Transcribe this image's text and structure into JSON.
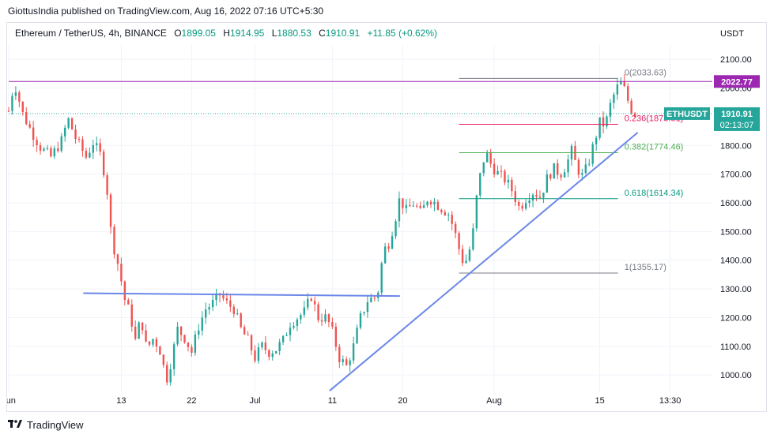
{
  "publisher_line": "GiottusIndia published on TradingView.com, Aug 16, 2022 07:16 UTC+5:30",
  "symbol_header": {
    "name": "Ethereum / TetherUS, 4h, BINANCE",
    "o_label": "O",
    "o_value": "1899.05",
    "h_label": "H",
    "h_value": "1914.95",
    "l_label": "L",
    "l_value": "1880.53",
    "c_label": "C",
    "c_value": "1910.91",
    "change": "+11.85 (+0.62%)"
  },
  "currency": "USDT",
  "footer_brand": "TradingView",
  "colors": {
    "up": "#26a69a",
    "down": "#ef5350",
    "trend": "#6b87e8",
    "resistance": "#9c27b0",
    "fib_top": "#787b86",
    "fib_236": "#e91e63",
    "fib_382": "#4caf50",
    "fib_618": "#089981",
    "fib_1": "#787b86"
  },
  "chart_data": {
    "type": "candlestick",
    "title": "Ethereum / TetherUS, 4h, BINANCE",
    "ylabel": "USDT",
    "ylim": [
      940,
      2150
    ],
    "y_ticks": [
      "1000.00",
      "1100.00",
      "1200.00",
      "1300.00",
      "1400.00",
      "1500.00",
      "1600.00",
      "1700.00",
      "1800.00",
      "1900.00",
      "2000.00",
      "2100.00"
    ],
    "x_ticks": [
      "Jun",
      "13",
      "22",
      "Jul",
      "11",
      "20",
      "Aug",
      "15",
      "13:30"
    ],
    "x_tick_positions": [
      0,
      8,
      13,
      17.5,
      23,
      28,
      34.5,
      42,
      47
    ],
    "x_max": 50,
    "last_price": {
      "label": "ETHUSDT",
      "value": "1910.91",
      "countdown": "02:13:07",
      "level": 1910.91
    },
    "resistance_price": {
      "value": "2022.77",
      "level": 2022.77
    },
    "fibonacci": [
      {
        "label": "0(2033.63)",
        "level": 2033.63
      },
      {
        "label": "0.236(1873.51)",
        "level": 1873.51
      },
      {
        "label": "0.382(1774.46)",
        "level": 1774.46
      },
      {
        "label": "0.618(1614.34)",
        "level": 1614.34
      },
      {
        "label": "1(1355.17)",
        "level": 1355.17
      }
    ],
    "fib_x_range": [
      32,
      43.3
    ],
    "trendlines": [
      {
        "name": "support",
        "from": [
          22.8,
          945
        ],
        "to": [
          44.7,
          1845
        ]
      },
      {
        "name": "neckline",
        "from": [
          5.3,
          1285
        ],
        "to": [
          27.8,
          1275
        ]
      }
    ],
    "price_path": [
      [
        0,
        1920
      ],
      [
        0.4,
        2020
      ],
      [
        1,
        1910
      ],
      [
        1.6,
        1850
      ],
      [
        2.3,
        1790
      ],
      [
        3,
        1760
      ],
      [
        3.8,
        1820
      ],
      [
        4.2,
        1895
      ],
      [
        4.8,
        1820
      ],
      [
        5.5,
        1760
      ],
      [
        6,
        1810
      ],
      [
        6.6,
        1760
      ],
      [
        7,
        1640
      ],
      [
        7.3,
        1480
      ],
      [
        7.8,
        1380
      ],
      [
        8.3,
        1250
      ],
      [
        8.6,
        1220
      ],
      [
        9,
        1120
      ],
      [
        9.4,
        1200
      ],
      [
        9.8,
        1090
      ],
      [
        10.3,
        1130
      ],
      [
        10.8,
        1080
      ],
      [
        11.2,
        980
      ],
      [
        11.6,
        1060
      ],
      [
        12,
        1160
      ],
      [
        12.5,
        1130
      ],
      [
        13,
        1080
      ],
      [
        13.5,
        1170
      ],
      [
        14,
        1230
      ],
      [
        14.5,
        1250
      ],
      [
        15,
        1280
      ],
      [
        15.5,
        1250
      ],
      [
        16,
        1230
      ],
      [
        16.5,
        1160
      ],
      [
        17,
        1120
      ],
      [
        17.5,
        1060
      ],
      [
        18,
        1100
      ],
      [
        18.5,
        1080
      ],
      [
        19,
        1090
      ],
      [
        19.5,
        1120
      ],
      [
        20,
        1180
      ],
      [
        20.5,
        1200
      ],
      [
        21,
        1220
      ],
      [
        21.5,
        1275
      ],
      [
        22,
        1200
      ],
      [
        22.6,
        1200
      ],
      [
        23,
        1150
      ],
      [
        23.5,
        1060
      ],
      [
        24,
        1030
      ],
      [
        24.5,
        1100
      ],
      [
        25,
        1200
      ],
      [
        25.5,
        1260
      ],
      [
        26,
        1270
      ],
      [
        26.3,
        1300
      ],
      [
        26.6,
        1430
      ],
      [
        27,
        1460
      ],
      [
        27.4,
        1530
      ],
      [
        27.8,
        1620
      ],
      [
        28.2,
        1570
      ],
      [
        28.8,
        1600
      ],
      [
        29.3,
        1560
      ],
      [
        29.8,
        1620
      ],
      [
        30.3,
        1600
      ],
      [
        30.8,
        1580
      ],
      [
        31.3,
        1560
      ],
      [
        31.8,
        1480
      ],
      [
        32.2,
        1400
      ],
      [
        32.6,
        1400
      ],
      [
        33,
        1500
      ],
      [
        33.3,
        1640
      ],
      [
        33.6,
        1720
      ],
      [
        33.9,
        1780
      ],
      [
        34.3,
        1730
      ],
      [
        34.8,
        1700
      ],
      [
        35.3,
        1680
      ],
      [
        35.8,
        1640
      ],
      [
        36.3,
        1580
      ],
      [
        36.8,
        1620
      ],
      [
        37.3,
        1640
      ],
      [
        37.8,
        1620
      ],
      [
        38.2,
        1680
      ],
      [
        38.7,
        1720
      ],
      [
        39.2,
        1700
      ],
      [
        39.6,
        1730
      ],
      [
        40,
        1780
      ],
      [
        40.4,
        1720
      ],
      [
        40.8,
        1690
      ],
      [
        41.2,
        1740
      ],
      [
        41.6,
        1810
      ],
      [
        42,
        1880
      ],
      [
        42.4,
        1870
      ],
      [
        42.8,
        1950
      ],
      [
        43.2,
        2000
      ],
      [
        43.6,
        2020
      ],
      [
        43.9,
        1970
      ],
      [
        44.2,
        1930
      ],
      [
        44.5,
        1910
      ]
    ]
  }
}
